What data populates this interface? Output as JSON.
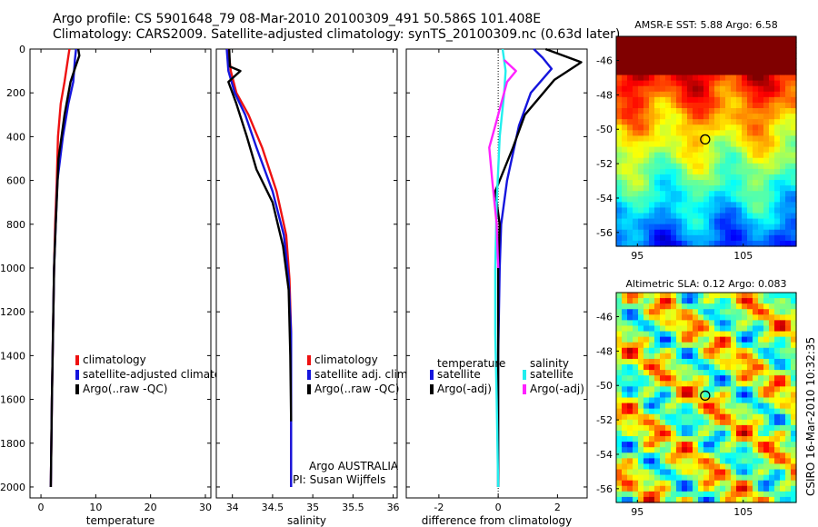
{
  "header": {
    "title_line1": "Argo profile: CS 5901648_79 08-Mar-2010 20100309_491 50.586S 101.408E",
    "title_line2": "Climatology: CARS2009. Satellite-adjusted climatology: synTS_20100309.nc (0.63d later)"
  },
  "side_stamp": "CSIRO 16-Mar-2010 10:32:35",
  "colors": {
    "red": "#ee1111",
    "blue": "#1515dd",
    "black": "#000000",
    "cyan": "#22eeee",
    "magenta": "#ff22ff"
  },
  "chart_data": [
    {
      "id": "temperature",
      "type": "line",
      "xlabel": "temperature",
      "ylabel": "",
      "xlim": [
        -2,
        31
      ],
      "ylim": [
        2050,
        0
      ],
      "xticks": [
        "0",
        "10",
        "20",
        "30"
      ],
      "yticks": [
        "0",
        "200",
        "400",
        "600",
        "800",
        "1000",
        "1200",
        "1400",
        "1600",
        "1800",
        "2000"
      ],
      "legend": [
        "climatology",
        "satellite-adjusted climatolog",
        "Argo(..raw -QC)"
      ],
      "series": [
        {
          "name": "climatology",
          "color": "red",
          "x": [
            5.2,
            4.9,
            4.3,
            3.6,
            3.1,
            2.9,
            2.6,
            2.4,
            2.2,
            2.0,
            1.8
          ],
          "y": [
            0,
            50,
            150,
            250,
            400,
            600,
            800,
            1000,
            1300,
            1600,
            2000
          ]
        },
        {
          "name": "satellite-adjusted climatolog",
          "color": "blue",
          "x": [
            6.4,
            6.2,
            5.9,
            5.0,
            4.0,
            3.0,
            2.7,
            2.4,
            2.2,
            2.0,
            1.8
          ],
          "y": [
            0,
            50,
            150,
            250,
            400,
            600,
            800,
            1000,
            1300,
            1600,
            2000
          ]
        },
        {
          "name": "Argo(..raw -QC)",
          "color": "black",
          "x": [
            6.8,
            7.0,
            6.3,
            5.4,
            4.3,
            3.2,
            2.7,
            2.4,
            2.2,
            2.0,
            1.8
          ],
          "y": [
            0,
            30,
            80,
            150,
            300,
            500,
            800,
            1000,
            1300,
            1600,
            2000
          ]
        }
      ]
    },
    {
      "id": "salinity",
      "type": "line",
      "xlabel": "salinity",
      "xlim": [
        33.8,
        36.05
      ],
      "ylim": [
        2050,
        0
      ],
      "xticks": [
        "34",
        "34.5",
        "35",
        "35.5",
        "36"
      ],
      "legend": [
        "climatology",
        "satellite adj. clim.",
        "Argo(..raw -QC)"
      ],
      "notes": [
        "Argo AUSTRALIA",
        "PI: Susan Wijffels"
      ],
      "series": [
        {
          "name": "climatology",
          "color": "red",
          "x": [
            33.95,
            33.98,
            34.05,
            34.2,
            34.37,
            34.55,
            34.67,
            34.71,
            34.73,
            34.73,
            34.73
          ],
          "y": [
            0,
            100,
            200,
            300,
            450,
            650,
            850,
            1050,
            1300,
            1600,
            2000
          ]
        },
        {
          "name": "satellite adj. clim.",
          "color": "blue",
          "x": [
            33.93,
            33.95,
            34.03,
            34.16,
            34.3,
            34.5,
            34.64,
            34.7,
            34.73,
            34.73,
            34.73
          ],
          "y": [
            0,
            100,
            200,
            300,
            450,
            650,
            850,
            1050,
            1300,
            1600,
            2000
          ]
        },
        {
          "name": "Argo(..raw -QC)",
          "color": "black",
          "x": [
            33.96,
            33.97,
            34.1,
            33.95,
            34.05,
            34.18,
            34.3,
            34.5,
            34.63,
            34.7,
            34.72,
            34.73
          ],
          "y": [
            0,
            80,
            100,
            150,
            250,
            400,
            550,
            700,
            900,
            1100,
            1400,
            1700
          ]
        }
      ]
    },
    {
      "id": "difference",
      "type": "line",
      "xlabel": "difference from climatology",
      "xlim": [
        -3.1,
        3.0
      ],
      "ylim": [
        2050,
        0
      ],
      "xticks": [
        "-2",
        "0",
        "2"
      ],
      "legend_title_left": "temperature",
      "legend_title_right": "salinity",
      "legend": [
        "satellite",
        "Argo(-adj)",
        "satellite",
        "Argo(-adj)"
      ],
      "series": [
        {
          "name": "temperature satellite",
          "color": "blue",
          "x": [
            1.2,
            1.5,
            1.8,
            1.1,
            0.7,
            0.3,
            0.1,
            0.05,
            0.0,
            0.0
          ],
          "y": [
            0,
            40,
            90,
            200,
            350,
            600,
            800,
            1000,
            1400,
            2000
          ]
        },
        {
          "name": "temperature Argo(-adj)",
          "color": "black",
          "x": [
            1.6,
            2.8,
            1.9,
            0.9,
            0.5,
            -0.1,
            0.05,
            0.0,
            0.0
          ],
          "y": [
            0,
            60,
            140,
            300,
            450,
            650,
            800,
            1000,
            2000
          ]
        },
        {
          "name": "salinity satellite",
          "color": "cyan",
          "x": [
            0.15,
            0.25,
            0.2,
            0.05,
            -0.05,
            -0.1,
            -0.1,
            -0.05,
            0.0
          ],
          "y": [
            0,
            100,
            200,
            400,
            700,
            1000,
            1300,
            1600,
            2000
          ]
        },
        {
          "name": "salinity Argo(-adj)",
          "color": "magenta",
          "x": [
            0.2,
            0.6,
            0.3,
            -0.1,
            -0.3,
            -0.2,
            -0.05,
            0.0
          ],
          "y": [
            50,
            100,
            150,
            350,
            450,
            600,
            800,
            1000
          ]
        }
      ]
    },
    {
      "id": "sst_map",
      "type": "heatmap",
      "title": "AMSR-E SST: 5.88 Argo: 6.58",
      "xlim": [
        93,
        110
      ],
      "ylim": [
        -56.8,
        -44.6
      ],
      "xticks": [
        "95",
        "105"
      ],
      "yticks": [
        "-46",
        "-48",
        "-50",
        "-52",
        "-54",
        "-56"
      ],
      "argo_location": {
        "lon": 101.4,
        "lat": -50.59
      }
    },
    {
      "id": "sla_map",
      "type": "heatmap",
      "title": "Altimetric SLA: 0.12 Argo: 0.083",
      "xlim": [
        93,
        110
      ],
      "ylim": [
        -56.8,
        -44.6
      ],
      "xticks": [
        "95",
        "105"
      ],
      "yticks": [
        "-46",
        "-48",
        "-50",
        "-52",
        "-54",
        "-56"
      ],
      "argo_location": {
        "lon": 101.4,
        "lat": -50.59
      }
    }
  ]
}
